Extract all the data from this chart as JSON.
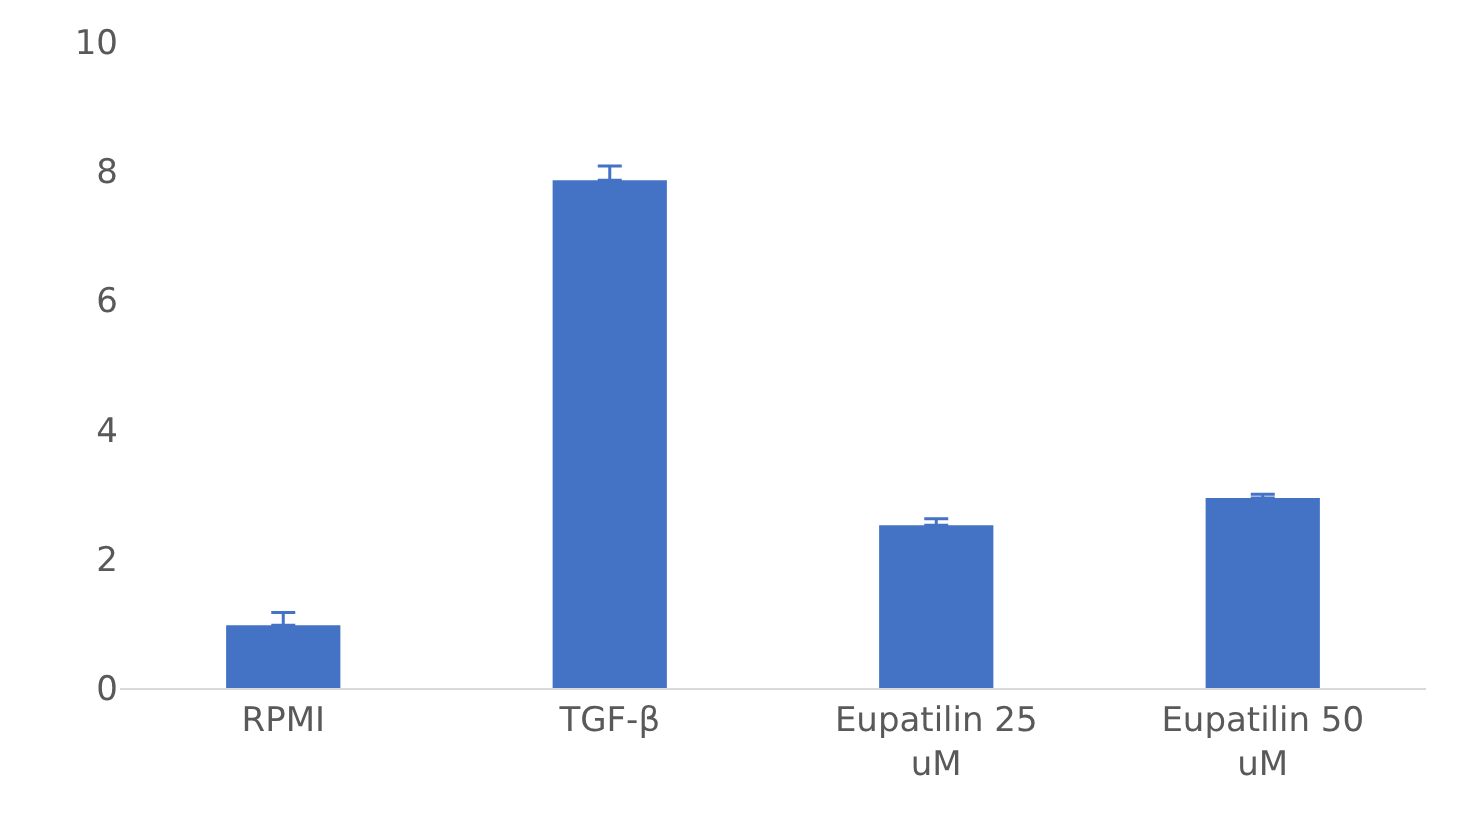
{
  "chart_data": {
    "type": "bar",
    "categories": [
      "RPMI",
      "TGF-β",
      "Eupatilin 25 uM",
      "Eupatilin 50 uM"
    ],
    "values": [
      0.97,
      7.86,
      2.52,
      2.94
    ],
    "errors": [
      [
        0.97,
        1.17
      ],
      [
        7.86,
        8.08
      ],
      [
        2.52,
        2.62
      ],
      [
        2.94,
        3.0
      ]
    ],
    "color": "#4472c4",
    "ylim": [
      0,
      10
    ],
    "yticks": [
      0,
      2,
      4,
      6,
      8,
      10
    ],
    "grid": false
  }
}
